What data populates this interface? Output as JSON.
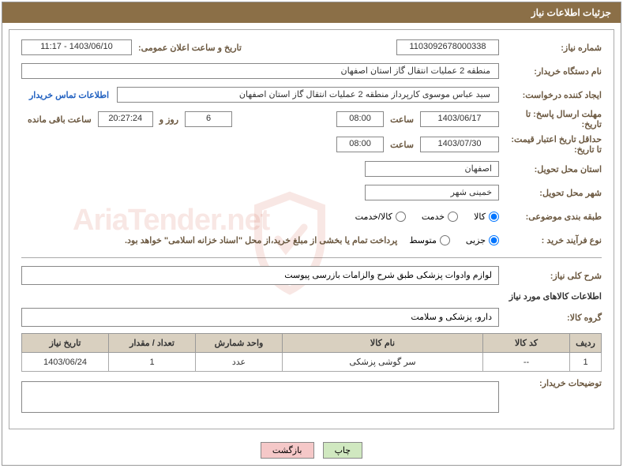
{
  "header": {
    "title": "جزئیات اطلاعات نیاز"
  },
  "labels": {
    "need_number": "شماره نیاز:",
    "announce_datetime": "تاریخ و ساعت اعلان عمومی:",
    "buyer_org": "نام دستگاه خریدار:",
    "requester": "ایجاد کننده درخواست:",
    "contact_link": "اطلاعات تماس خریدار",
    "response_deadline": "مهلت ارسال پاسخ: تا تاریخ:",
    "hour": "ساعت",
    "days_and": "روز و",
    "time_remaining": "ساعت باقی مانده",
    "price_validity": "حداقل تاریخ اعتبار قیمت: تا تاریخ:",
    "delivery_province": "استان محل تحویل:",
    "delivery_city": "شهر محل تحویل:",
    "category": "طبقه بندی موضوعی:",
    "purchase_type": "نوع فرآیند خرید :",
    "general_desc": "شرح کلی نیاز:",
    "goods_info": "اطلاعات کالاهای مورد نیاز",
    "goods_group": "گروه کالا:",
    "buyer_notes": "توضیحات خریدار:"
  },
  "values": {
    "need_number": "1103092678000338",
    "announce_datetime": "1403/06/10 - 11:17",
    "buyer_org": "منطقه 2 عملیات انتقال گاز استان اصفهان",
    "requester": "سید عباس موسوی کارپرداز منطقه 2 عملیات انتقال گاز استان اصفهان",
    "response_date": "1403/06/17",
    "response_hour": "08:00",
    "days_remaining": "6",
    "countdown": "20:27:24",
    "price_validity_date": "1403/07/30",
    "price_validity_hour": "08:00",
    "delivery_province": "اصفهان",
    "delivery_city": "خمینی شهر",
    "payment_note": "پرداخت تمام یا بخشی از مبلغ خرید،از محل \"اسناد خزانه اسلامی\" خواهد بود.",
    "general_desc": "لوازم وادوات پزشکی طبق شرح والزامات بازرسی پیوست",
    "goods_group": "دارو، پزشکی و سلامت"
  },
  "radios": {
    "category": {
      "options": [
        {
          "label": "کالا",
          "checked": true
        },
        {
          "label": "خدمت",
          "checked": false
        },
        {
          "label": "کالا/خدمت",
          "checked": false
        }
      ]
    },
    "purchase": {
      "options": [
        {
          "label": "جزیی",
          "checked": true
        },
        {
          "label": "متوسط",
          "checked": false
        }
      ]
    }
  },
  "table": {
    "headers": [
      "ردیف",
      "کد کالا",
      "نام کالا",
      "واحد شمارش",
      "تعداد / مقدار",
      "تاریخ نیاز"
    ],
    "rows": [
      {
        "row_num": "1",
        "code": "--",
        "name": "سر گوشی پزشکی",
        "unit": "عدد",
        "qty": "1",
        "date": "1403/06/24"
      }
    ]
  },
  "buttons": {
    "print": "چاپ",
    "back": "بازگشت"
  },
  "watermark": "AriaTender.net"
}
